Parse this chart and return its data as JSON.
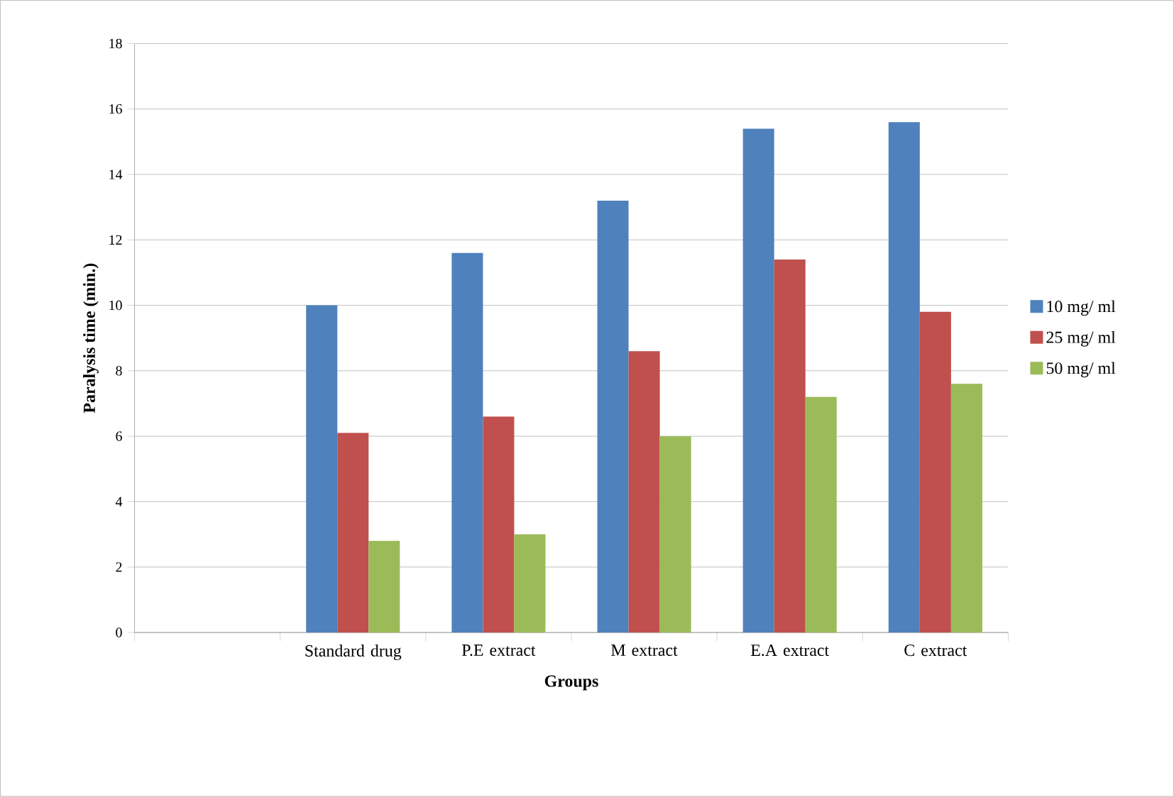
{
  "chart_data": {
    "type": "bar",
    "xlabel": "Groups",
    "ylabel": "Paralysis time (min.)",
    "categories": [
      null,
      "Standard drug",
      "P.E extract",
      "M extract",
      "E.A extract",
      "C extract"
    ],
    "series": [
      {
        "name": "10 mg/ ml",
        "color": "#4f81bd",
        "values": [
          null,
          10,
          11.6,
          13.2,
          15.4,
          15.6
        ]
      },
      {
        "name": "25 mg/ ml",
        "color": "#c0504d",
        "values": [
          null,
          6.1,
          6.6,
          8.6,
          11.4,
          9.8
        ]
      },
      {
        "name": "50 mg/ ml",
        "color": "#9bbb59",
        "values": [
          null,
          2.8,
          3.0,
          6.0,
          7.2,
          7.6
        ]
      }
    ],
    "ylim": [
      0,
      18
    ],
    "yticks": [
      0,
      2,
      4,
      6,
      8,
      10,
      12,
      14,
      16,
      18
    ],
    "grid": "y",
    "legend": "right"
  }
}
